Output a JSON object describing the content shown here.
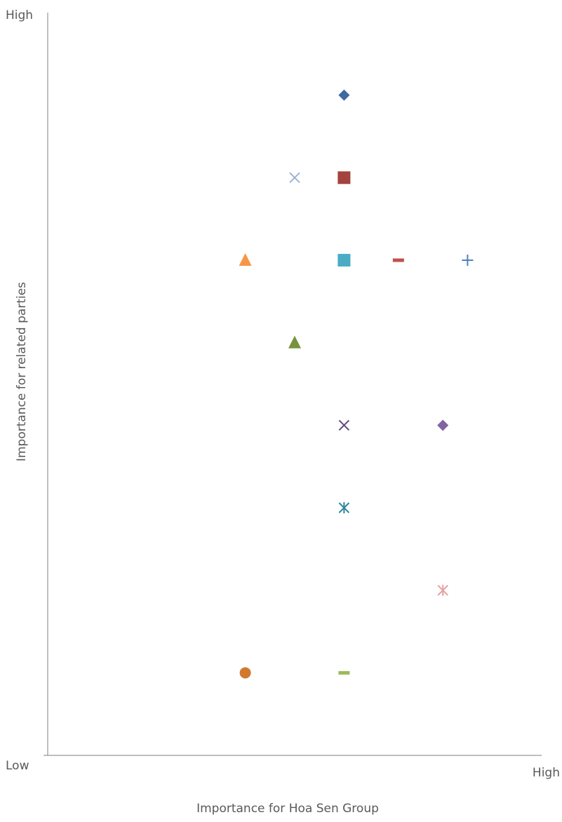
{
  "chart_data": {
    "type": "scatter",
    "title": "",
    "xlabel": "Importance for Hoa Sen Group",
    "ylabel": "Importance for related parties",
    "x_axis_labels": {
      "low": "Low",
      "high": "High"
    },
    "y_axis_labels": {
      "low": "Low",
      "high": "High"
    },
    "xlim": [
      0,
      10
    ],
    "ylim": [
      0,
      9
    ],
    "grid": false,
    "legend": "none",
    "points": [
      {
        "x": 6.0,
        "y": 8.0,
        "marker": "diamond",
        "color": "#3d6aa3"
      },
      {
        "x": 5.0,
        "y": 7.0,
        "marker": "x",
        "color": "#9fb3d8"
      },
      {
        "x": 6.0,
        "y": 7.0,
        "marker": "square",
        "color": "#a3423e"
      },
      {
        "x": 4.0,
        "y": 6.0,
        "marker": "triangle",
        "color": "#f79646"
      },
      {
        "x": 6.0,
        "y": 6.0,
        "marker": "square",
        "color": "#4bacc6"
      },
      {
        "x": 7.1,
        "y": 6.0,
        "marker": "dash",
        "color": "#c0504d"
      },
      {
        "x": 8.5,
        "y": 6.0,
        "marker": "plus",
        "color": "#4f81bd"
      },
      {
        "x": 5.0,
        "y": 5.0,
        "marker": "triangle",
        "color": "#77933c"
      },
      {
        "x": 6.0,
        "y": 4.0,
        "marker": "x",
        "color": "#604a7b"
      },
      {
        "x": 8.0,
        "y": 4.0,
        "marker": "diamond",
        "color": "#8064a2"
      },
      {
        "x": 6.0,
        "y": 3.0,
        "marker": "star",
        "color": "#31859c"
      },
      {
        "x": 8.0,
        "y": 2.0,
        "marker": "star",
        "color": "#e6a0a0"
      },
      {
        "x": 4.0,
        "y": 1.0,
        "marker": "circle",
        "color": "#d07a30"
      },
      {
        "x": 6.0,
        "y": 1.0,
        "marker": "dash",
        "color": "#9bbb59"
      }
    ]
  },
  "colors": {
    "axis": "#7f7f7f",
    "text": "#595959"
  }
}
